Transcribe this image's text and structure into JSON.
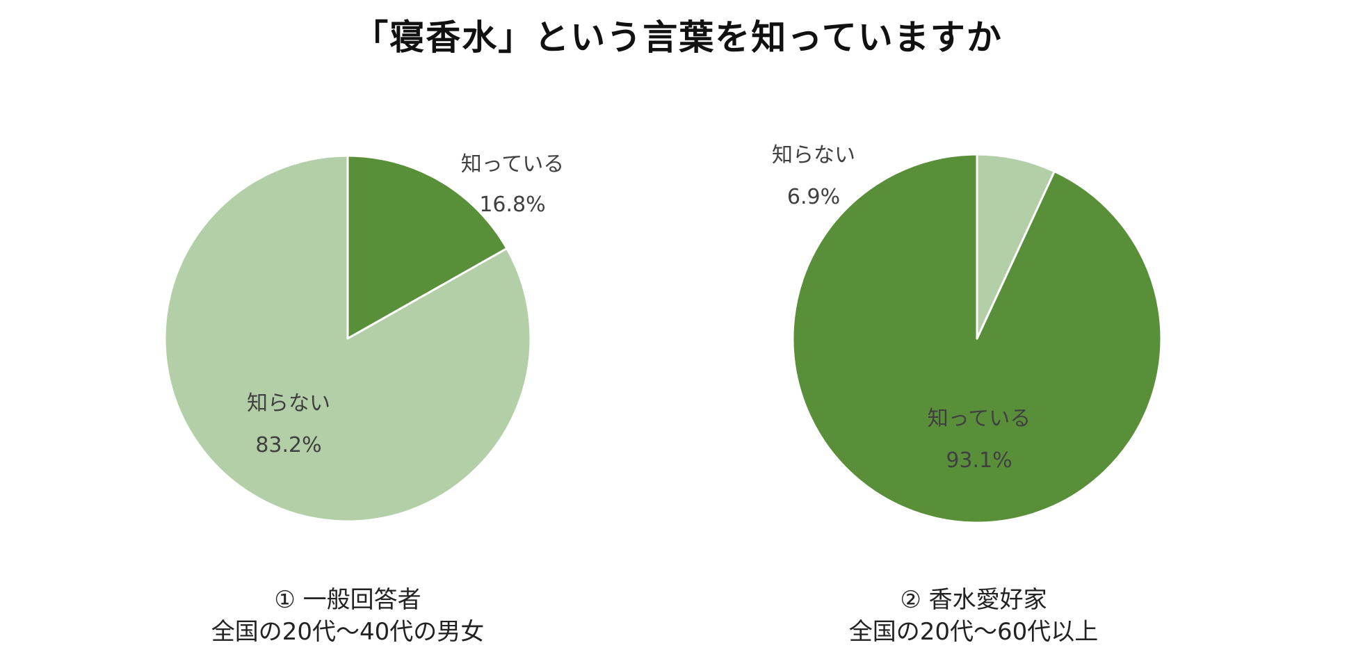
{
  "title": "「寝香水」という言葉を知っていますか",
  "colors": {
    "dark": "#5a8f3a",
    "light": "#b3cfa8",
    "stroke": "#ffffff"
  },
  "chart_data": [
    {
      "type": "pie",
      "caption_line1": "① 一般回答者",
      "caption_line2": "全国の20代〜40代の男女",
      "slices": [
        {
          "label": "知っている",
          "value": 16.8,
          "value_label": "16.8%",
          "color": "#5a8f3a"
        },
        {
          "label": "知らない",
          "value": 83.2,
          "value_label": "83.2%",
          "color": "#b3cfa8"
        }
      ]
    },
    {
      "type": "pie",
      "caption_line1": "② 香水愛好家",
      "caption_line2": "全国の20代〜60代以上",
      "slices": [
        {
          "label": "知っている",
          "value": 93.1,
          "value_label": "93.1%",
          "color": "#5a8f3a"
        },
        {
          "label": "知らない",
          "value": 6.9,
          "value_label": "6.9%",
          "color": "#b3cfa8"
        }
      ]
    }
  ]
}
